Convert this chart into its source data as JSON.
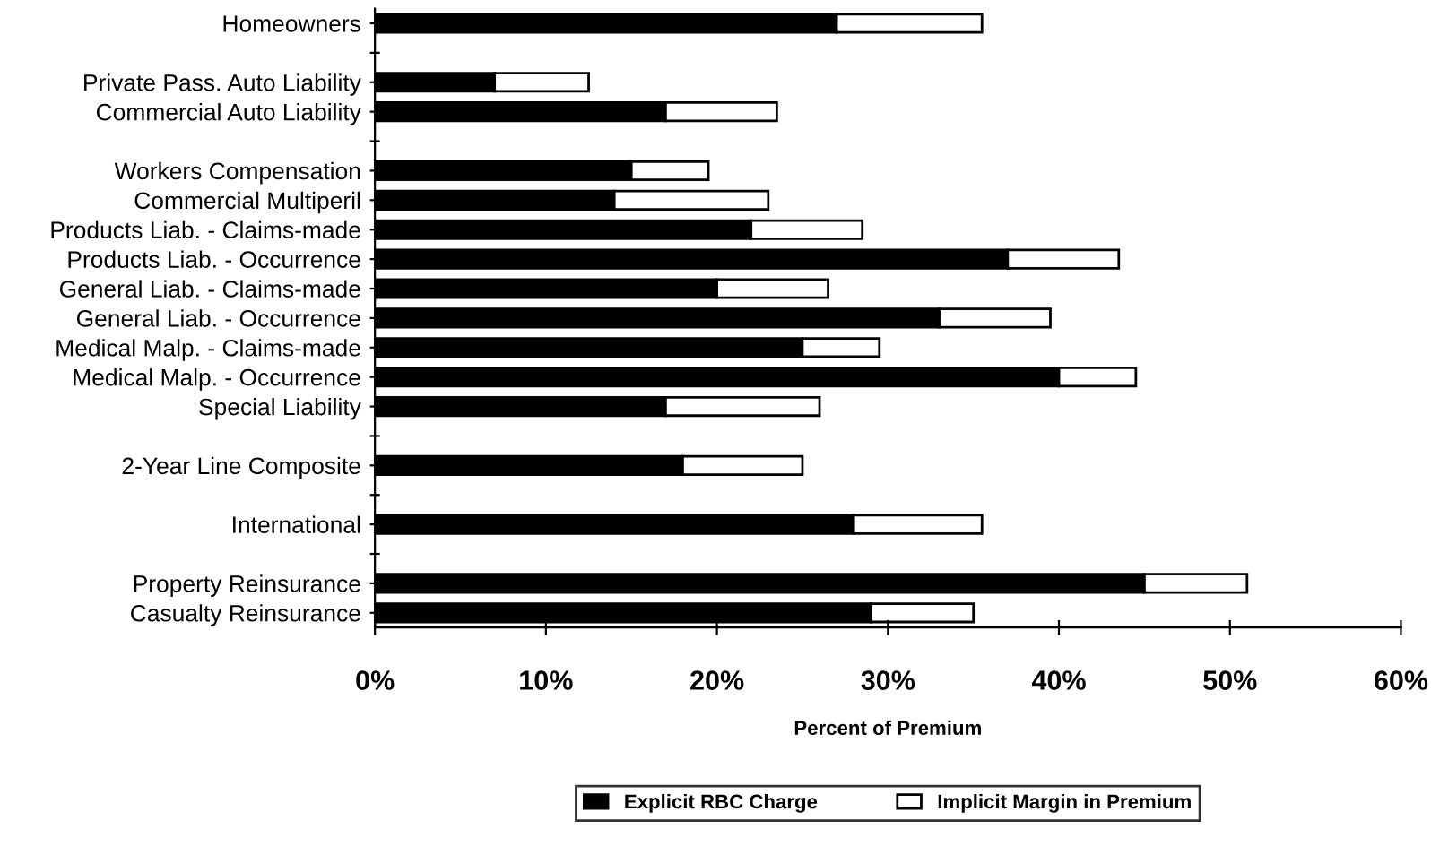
{
  "chart_data": {
    "type": "bar",
    "orientation": "horizontal",
    "stacked": true,
    "categories": [
      "Homeowners",
      null,
      "Private Pass. Auto Liability",
      "Commercial Auto Liability",
      null,
      "Workers Compensation",
      "Commercial Multiperil",
      "Products Liab. - Claims-made",
      "Products Liab. - Occurrence",
      "General Liab. - Claims-made",
      "General Liab. - Occurrence",
      "Medical Malp. - Claims-made",
      "Medical Malp. - Occurrence",
      "Special Liability",
      null,
      "2-Year Line Composite",
      null,
      "International",
      null,
      "Property Reinsurance",
      "Casualty Reinsurance"
    ],
    "series": [
      {
        "name": "Explicit RBC Charge",
        "color": "#000000",
        "values": [
          27,
          null,
          7,
          17,
          null,
          15,
          14,
          22,
          37,
          20,
          33,
          25,
          40,
          17,
          null,
          18,
          null,
          28,
          null,
          45,
          29
        ]
      },
      {
        "name": "Implicit Margin in Premium",
        "color": "#ffffff",
        "values": [
          8.5,
          null,
          5.5,
          6.5,
          null,
          4.5,
          9,
          6.5,
          6.5,
          6.5,
          6.5,
          4.5,
          4.5,
          9,
          null,
          7,
          null,
          7.5,
          null,
          6,
          6
        ]
      }
    ],
    "xlabel": "Percent of Premium",
    "xlim": [
      0,
      60
    ],
    "xticks": [
      {
        "value": 0,
        "label": "0%"
      },
      {
        "value": 10,
        "label": "10%"
      },
      {
        "value": 20,
        "label": "20%"
      },
      {
        "value": 30,
        "label": "30%"
      },
      {
        "value": 40,
        "label": "40%"
      },
      {
        "value": 50,
        "label": "50%"
      },
      {
        "value": 60,
        "label": "60%"
      }
    ],
    "grid": false,
    "legend": "bottom"
  }
}
